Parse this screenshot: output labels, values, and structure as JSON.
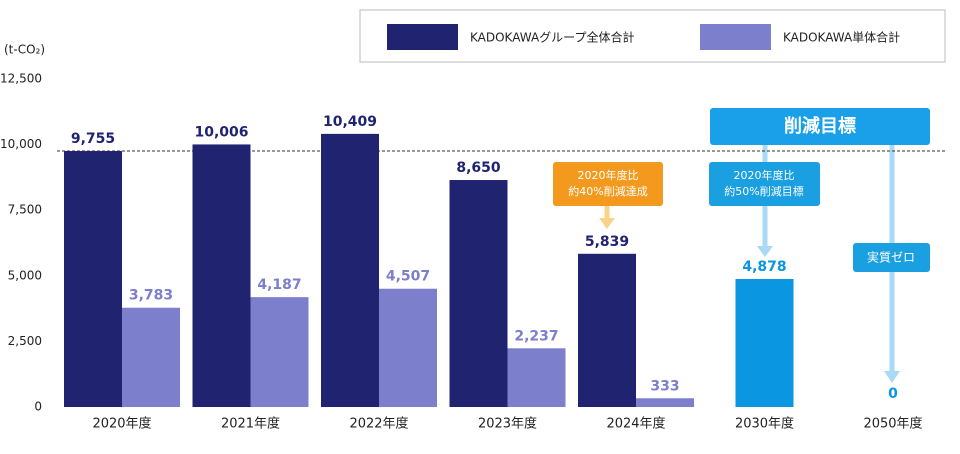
{
  "chart_data": {
    "type": "bar",
    "y_unit_label": "(t-CO₂)",
    "categories": [
      "2020年度",
      "2021年度",
      "2022年度",
      "2023年度",
      "2024年度",
      "2030年度",
      "2050年度"
    ],
    "series": [
      {
        "name": "KADOKAWAグループ全体合計",
        "color": "#1f2370",
        "values": [
          9755,
          10006,
          10409,
          8650,
          5839,
          null,
          null
        ],
        "value_labels": [
          "9,755",
          "10,006",
          "10,409",
          "8,650",
          "5,839",
          null,
          null
        ]
      },
      {
        "name": "KADOKAWA単体合計",
        "color": "#7b7fcc",
        "values": [
          3783,
          4187,
          4507,
          2237,
          333,
          null,
          null
        ],
        "value_labels": [
          "3,783",
          "4,187",
          "4,507",
          "2,237",
          "333",
          null,
          null
        ]
      },
      {
        "color": "#0a96e0",
        "values": [
          null,
          null,
          null,
          null,
          null,
          4878,
          0
        ],
        "value_labels": [
          null,
          null,
          null,
          null,
          null,
          "4,878",
          null
        ]
      }
    ],
    "ylim": [
      0,
      12500
    ],
    "yticks": [
      0,
      {
        "value": 2500,
        "label": "2,500"
      },
      {
        "value": 5000,
        "label": "5,000"
      },
      {
        "value": 7500,
        "label": "7,500"
      },
      {
        "value": 10000,
        "label": "10,000"
      },
      {
        "value": 12500,
        "label": "12,500"
      }
    ],
    "annotations": {
      "target_banner": "削減目標",
      "achieved_2024": [
        "2020年度比",
        "約40%削減達成"
      ],
      "target_2030": [
        "2020年度比",
        "約50%削減目標"
      ],
      "target_2050": "実質ゼロ"
    }
  }
}
